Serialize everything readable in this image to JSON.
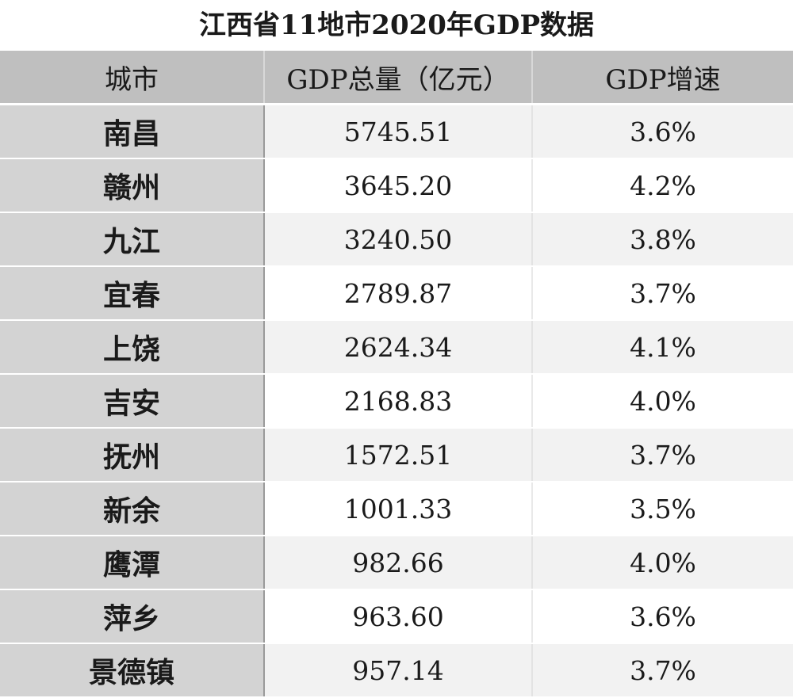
{
  "title": "江西省11地市2020年GDP数据",
  "headers": {
    "city": "城市",
    "gdp_total": "GDP总量（亿元）",
    "gdp_growth": "GDP增速"
  },
  "rows": [
    {
      "city": "南昌",
      "gdp": "5745.51",
      "growth": "3.6%"
    },
    {
      "city": "赣州",
      "gdp": "3645.20",
      "growth": "4.2%"
    },
    {
      "city": "九江",
      "gdp": "3240.50",
      "growth": "3.8%"
    },
    {
      "city": "宜春",
      "gdp": "2789.87",
      "growth": "3.7%"
    },
    {
      "city": "上饶",
      "gdp": "2624.34",
      "growth": "4.1%"
    },
    {
      "city": "吉安",
      "gdp": "2168.83",
      "growth": "4.0%"
    },
    {
      "city": "抚州",
      "gdp": "1572.51",
      "growth": "3.7%"
    },
    {
      "city": "新余",
      "gdp": "1001.33",
      "growth": "3.5%"
    },
    {
      "city": "鹰潭",
      "gdp": "982.66",
      "growth": "4.0%"
    },
    {
      "city": "萍乡",
      "gdp": "963.60",
      "growth": "3.6%"
    },
    {
      "city": "景德镇",
      "gdp": "957.14",
      "growth": "3.7%"
    }
  ]
}
